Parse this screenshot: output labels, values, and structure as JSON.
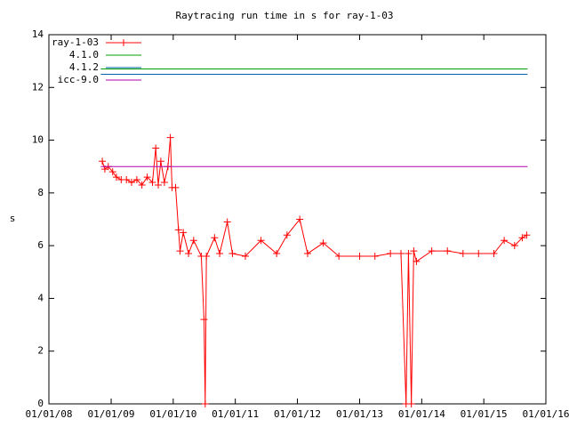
{
  "chart_data": {
    "type": "line",
    "title": "Raytracing run time in s for ray-1-03",
    "y_label": "s",
    "xlim": [
      "2008-01-01",
      "2016-01-01"
    ],
    "xticks": [
      {
        "value": "2008-01-01",
        "label": "01/01/08"
      },
      {
        "value": "2009-01-01",
        "label": "01/01/09"
      },
      {
        "value": "2010-01-01",
        "label": "01/01/10"
      },
      {
        "value": "2011-01-01",
        "label": "01/01/11"
      },
      {
        "value": "2012-01-01",
        "label": "01/01/12"
      },
      {
        "value": "2013-01-01",
        "label": "01/01/13"
      },
      {
        "value": "2014-01-01",
        "label": "01/01/14"
      },
      {
        "value": "2015-01-01",
        "label": "01/01/15"
      },
      {
        "value": "2016-01-01",
        "label": "01/01/16"
      }
    ],
    "ylim": [
      0,
      14
    ],
    "yticks": [
      0,
      2,
      4,
      6,
      8,
      10,
      12,
      14
    ],
    "legend": "top-left",
    "series": [
      {
        "name": "ray-1-03",
        "color": "#ff0000",
        "markers": true,
        "x": [
          "2008-11-10",
          "2008-11-25",
          "2008-12-15",
          "2009-01-10",
          "2009-02-01",
          "2009-03-01",
          "2009-04-01",
          "2009-05-01",
          "2009-06-01",
          "2009-07-01",
          "2009-08-01",
          "2009-09-01",
          "2009-09-20",
          "2009-10-05",
          "2009-10-20",
          "2009-11-10",
          "2009-12-01",
          "2009-12-15",
          "2009-12-25",
          "2010-01-15",
          "2010-02-01",
          "2010-02-10",
          "2010-03-01",
          "2010-04-01",
          "2010-05-01",
          "2010-06-15",
          "2010-07-01",
          "2010-07-08",
          "2010-07-15",
          "2010-09-01",
          "2010-10-01",
          "2010-11-15",
          "2010-12-15",
          "2011-03-01",
          "2011-06-01",
          "2011-09-01",
          "2011-11-01",
          "2012-01-15",
          "2012-03-01",
          "2012-06-01",
          "2012-09-01",
          "2013-01-01",
          "2013-04-01",
          "2013-07-01",
          "2013-09-01",
          "2013-10-01",
          "2013-10-15",
          "2013-11-01",
          "2013-11-15",
          "2013-12-01",
          "2014-03-01",
          "2014-06-01",
          "2014-09-01",
          "2014-12-01",
          "2015-03-01",
          "2015-05-01",
          "2015-07-01",
          "2015-08-15",
          "2015-09-10"
        ],
        "values": [
          9.2,
          8.9,
          9.0,
          8.8,
          8.6,
          8.5,
          8.5,
          8.4,
          8.5,
          8.3,
          8.6,
          8.4,
          9.7,
          8.3,
          9.2,
          8.4,
          9.0,
          10.1,
          8.2,
          8.2,
          6.6,
          5.8,
          6.5,
          5.7,
          6.2,
          5.6,
          3.2,
          0,
          5.6,
          6.3,
          5.7,
          6.9,
          5.7,
          5.6,
          6.2,
          5.7,
          6.4,
          7.0,
          5.7,
          6.1,
          5.6,
          5.6,
          5.6,
          5.7,
          5.7,
          0,
          5.7,
          0,
          5.8,
          5.4,
          5.8,
          5.8,
          5.7,
          5.7,
          5.7,
          6.2,
          6.0,
          6.3,
          6.4
        ]
      },
      {
        "name": "4.1.0",
        "color": "#00a000",
        "x": [
          "2008-11-01",
          "2015-09-15"
        ],
        "values": [
          12.7,
          12.7
        ]
      },
      {
        "name": "4.1.2",
        "color": "#0060ad",
        "x": [
          "2008-11-01",
          "2015-09-15"
        ],
        "values": [
          12.5,
          12.5
        ]
      },
      {
        "name": "icc-9.0",
        "color": "#b000b0",
        "x": [
          "2008-11-01",
          "2015-09-15"
        ],
        "values": [
          9.0,
          9.0
        ]
      }
    ]
  }
}
